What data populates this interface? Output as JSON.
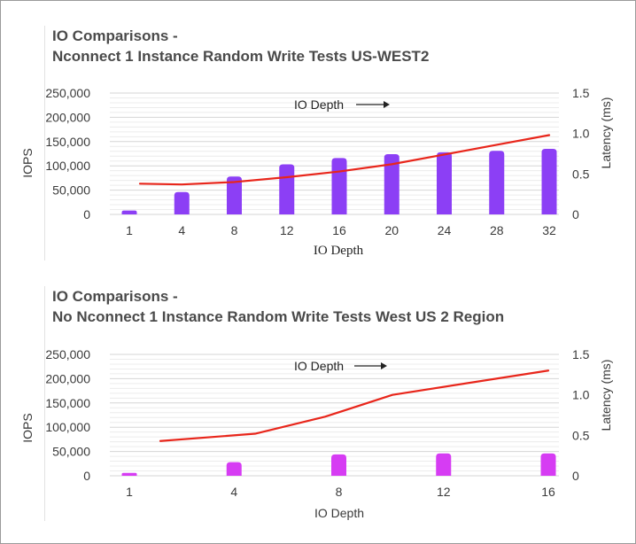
{
  "chart_data": [
    {
      "type": "bar",
      "title_line1": "IO Comparisons -",
      "title_line2": "Nconnect 1 Instance Random Write Tests US-WEST2",
      "xlabel": "IO Depth",
      "ylabel": "IOPS",
      "y2label": "Latency (ms)",
      "annotation": "IO Depth",
      "categories": [
        "1",
        "4",
        "8",
        "12",
        "16",
        "20",
        "24",
        "28",
        "32"
      ],
      "ylim": [
        0,
        250000
      ],
      "y_ticks": [
        "0",
        "50,000",
        "100,000",
        "150,000",
        "200,000",
        "250,000"
      ],
      "y2lim": [
        0,
        1.5
      ],
      "y2_ticks": [
        "0",
        "0.5",
        "1.0",
        "1.5"
      ],
      "grid": true,
      "series": [
        {
          "kind": "bar",
          "axis": "left",
          "color": "#8c3ff5",
          "values": [
            8000,
            46000,
            78000,
            103000,
            116000,
            124000,
            128000,
            131000,
            135000
          ]
        },
        {
          "kind": "line",
          "axis": "right",
          "color": "#e8261b",
          "values": [
            0.38,
            0.37,
            0.4,
            0.46,
            0.53,
            0.62,
            0.74,
            0.86,
            0.98
          ]
        }
      ]
    },
    {
      "type": "bar",
      "title_line1": "IO Comparisons -",
      "title_line2": "No Nconnect 1 Instance Random Write Tests West US 2 Region",
      "xlabel": "IO Depth",
      "ylabel": "IOPS",
      "y2label": "Latency (ms)",
      "annotation": "IO Depth",
      "categories": [
        "1",
        "4",
        "8",
        "12",
        "16"
      ],
      "ylim": [
        0,
        250000
      ],
      "y_ticks": [
        "0",
        "50,000",
        "100,000",
        "150,000",
        "200,000",
        "250,000"
      ],
      "y2lim": [
        0,
        1.5
      ],
      "y2_ticks": [
        "0",
        "0.5",
        "1.0",
        "1.5"
      ],
      "grid": true,
      "series": [
        {
          "kind": "bar",
          "axis": "left",
          "color": "#d63cf3",
          "values": [
            6000,
            28000,
            44000,
            46000,
            46000
          ]
        },
        {
          "kind": "line",
          "axis": "right",
          "color": "#e8261b",
          "values": [
            0.43,
            0.52,
            0.73,
            1.0,
            1.3
          ]
        }
      ]
    }
  ]
}
